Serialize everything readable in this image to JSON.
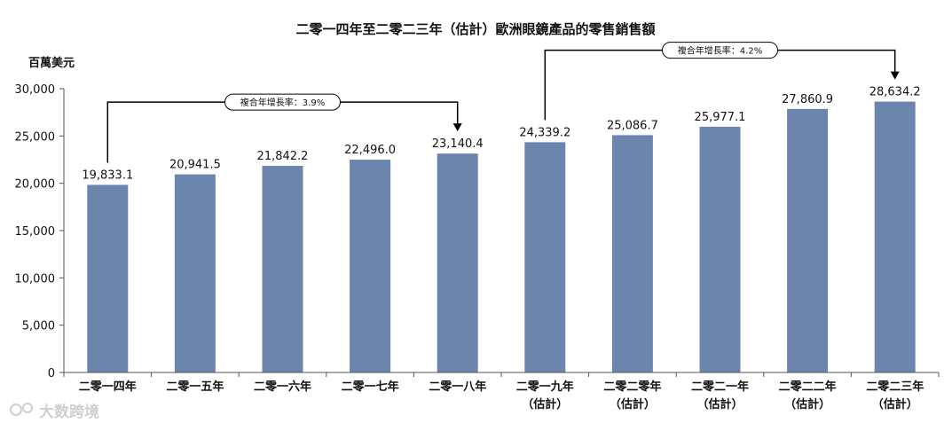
{
  "chart_data": {
    "type": "bar",
    "title": "二零一四年至二零二三年（估計）歐洲眼鏡產品的零售銷售額",
    "ylabel": "百萬美元",
    "xlabel": "",
    "ylim": [
      0,
      30000
    ],
    "yticks": [
      "30,000",
      "25,000",
      "20,000",
      "15,000",
      "10,000",
      "5,000",
      "0"
    ],
    "grid": false,
    "color": "#6b85ad",
    "categories": [
      [
        "二零一四年",
        ""
      ],
      [
        "二零一五年",
        ""
      ],
      [
        "二零一六年",
        ""
      ],
      [
        "二零一七年",
        ""
      ],
      [
        "二零一八年",
        ""
      ],
      [
        "二零一九年",
        "（估計）"
      ],
      [
        "二零二零年",
        "（估計）"
      ],
      [
        "二零二一年",
        "（估計）"
      ],
      [
        "二零二二年",
        "（估計）"
      ],
      [
        "二零二三年",
        "（估計）"
      ]
    ],
    "values": [
      19833.1,
      20941.5,
      21842.2,
      22496.0,
      23140.4,
      24339.2,
      25086.7,
      25977.1,
      27860.9,
      28634.2
    ],
    "value_labels": [
      "19,833.1",
      "20,941.5",
      "21,842.2",
      "22,496.0",
      "23,140.4",
      "24,339.2",
      "25,086.7",
      "25,977.1",
      "27,860.9",
      "28,634.2"
    ],
    "annotations": [
      {
        "from": 0,
        "to": 4,
        "text": "複合年增長率：3.9%"
      },
      {
        "from": 5,
        "to": 9,
        "text": "複合年增長率：4.2%"
      }
    ]
  },
  "watermark": "大数跨境"
}
